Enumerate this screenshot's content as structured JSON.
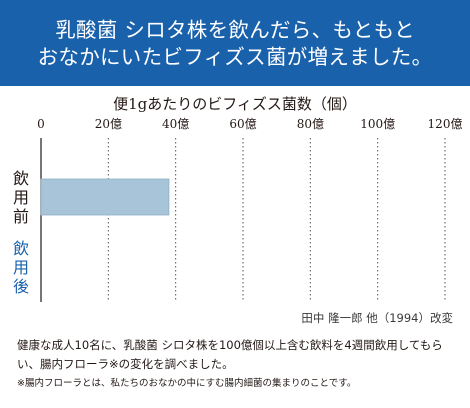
{
  "header": {
    "line1": "乳酸菌 シロタ株を飲んだら、もともと",
    "line2": "おなかにいたビフィズス菌が増えました。",
    "bg_color": "#1a61ac"
  },
  "chart_data": {
    "type": "bar",
    "orientation": "horizontal",
    "title": "便1gあたりのビフィズス菌数（個）",
    "x_ticks": [
      "0",
      "20億",
      "40億",
      "60億",
      "80億",
      "100億",
      "120億"
    ],
    "xlim": [
      0,
      120
    ],
    "unit": "億",
    "categories": [
      "飲用前",
      "飲用後"
    ],
    "category_colors": [
      "#231815",
      "#1a61ac"
    ],
    "values": [
      38,
      null
    ],
    "bar_color": "#a7c4d9",
    "grid": "dotted vertical"
  },
  "source": "田中 隆一郎 他（1994）改変",
  "notes": {
    "main": "健康な成人10名に、乳酸菌 シロタ株を100億個以上含む飲料を4週間飲用してもらい、腸内フローラ※の変化を調べました。",
    "footnote": "※腸内フローラとは、私たちのおなかの中にすむ腸内細菌の集まりのことです。"
  }
}
